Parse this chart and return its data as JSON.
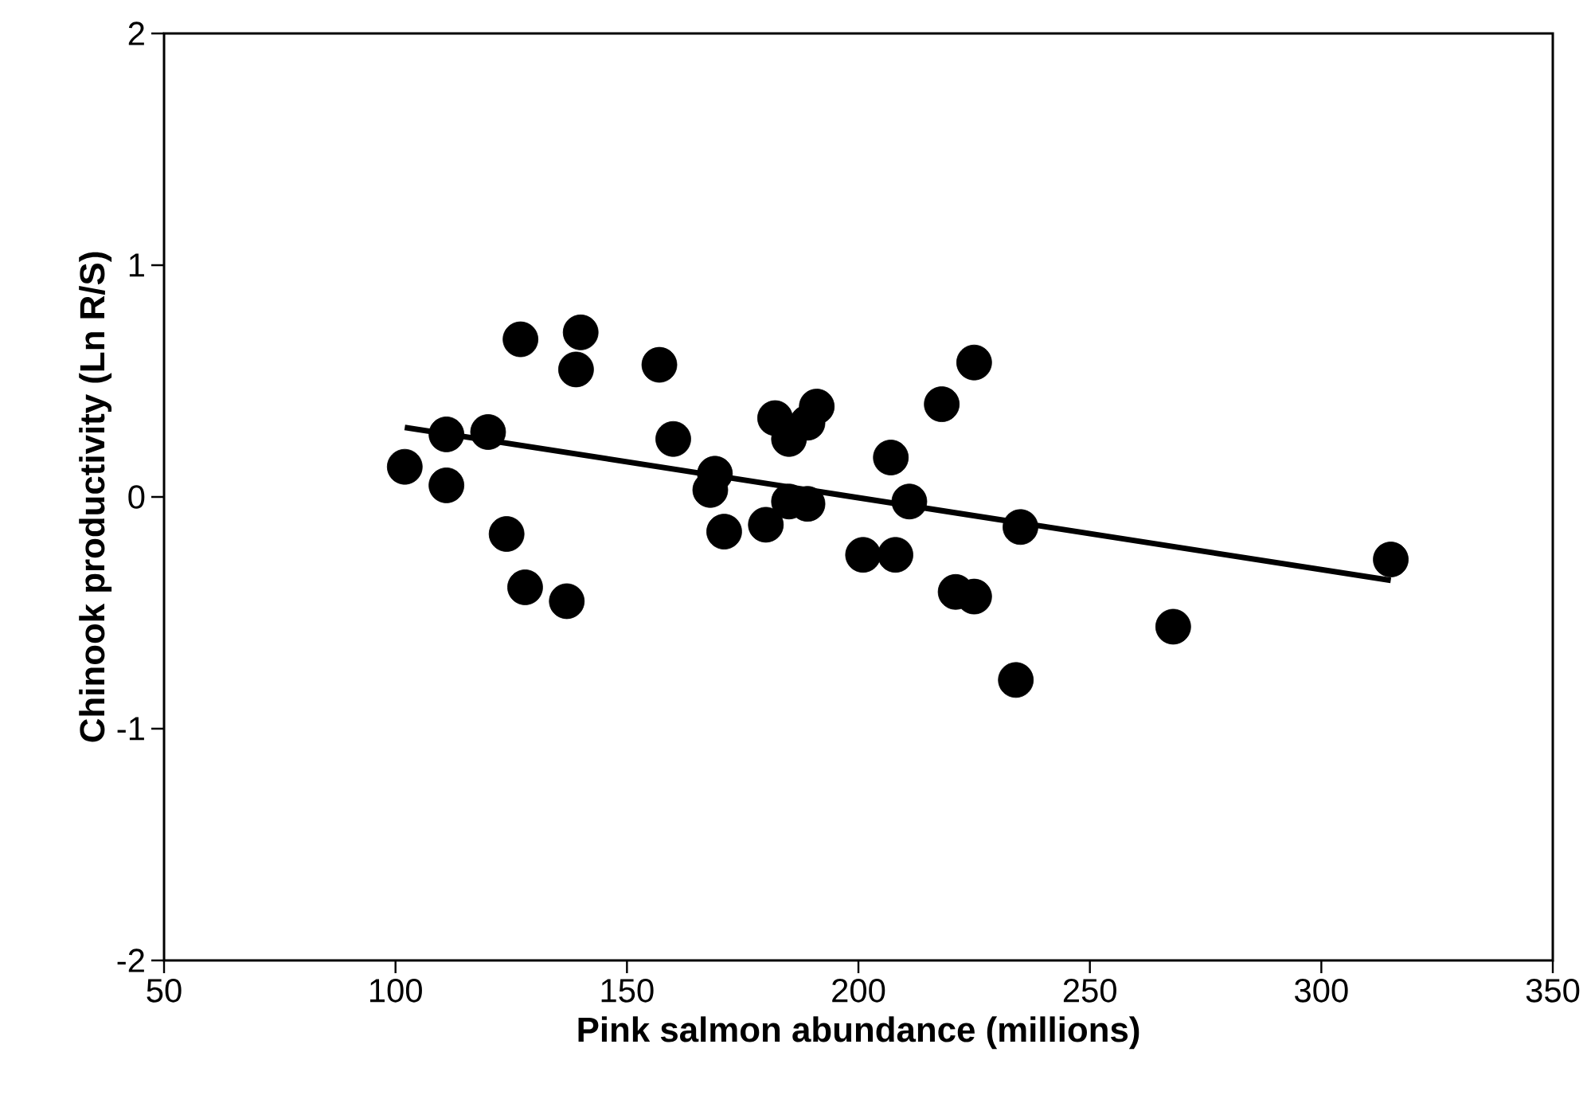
{
  "chart_data": {
    "type": "scatter",
    "xlabel": "Pink salmon abundance (millions)",
    "ylabel": "Chinook productivity (Ln R/S)",
    "xlim": [
      50,
      350
    ],
    "ylim": [
      -2,
      2
    ],
    "xticks": [
      50,
      100,
      150,
      200,
      250,
      300,
      350
    ],
    "yticks": [
      -2,
      -1,
      0,
      1,
      2
    ],
    "series": [
      {
        "marker": "circle",
        "color": "#000000",
        "x": [
          102,
          111,
          120,
          111,
          124,
          128,
          137,
          127,
          140,
          139,
          157,
          160,
          169,
          168,
          171,
          180,
          182,
          185,
          191,
          189,
          185,
          189,
          201,
          207,
          211,
          208,
          218,
          225,
          221,
          225,
          235,
          234,
          268,
          315
        ],
        "values": [
          0.13,
          0.27,
          0.28,
          0.05,
          -0.16,
          -0.39,
          -0.45,
          0.68,
          0.71,
          0.55,
          0.57,
          0.25,
          0.1,
          0.03,
          -0.15,
          -0.12,
          0.34,
          0.25,
          0.39,
          0.32,
          -0.02,
          -0.03,
          -0.25,
          0.17,
          -0.02,
          -0.25,
          0.4,
          0.58,
          -0.41,
          -0.43,
          -0.13,
          -0.79,
          -0.56,
          -0.27
        ]
      },
      {
        "type": "line",
        "color": "#000000",
        "x": [
          102,
          315
        ],
        "values": [
          0.3,
          -0.36
        ]
      }
    ]
  }
}
